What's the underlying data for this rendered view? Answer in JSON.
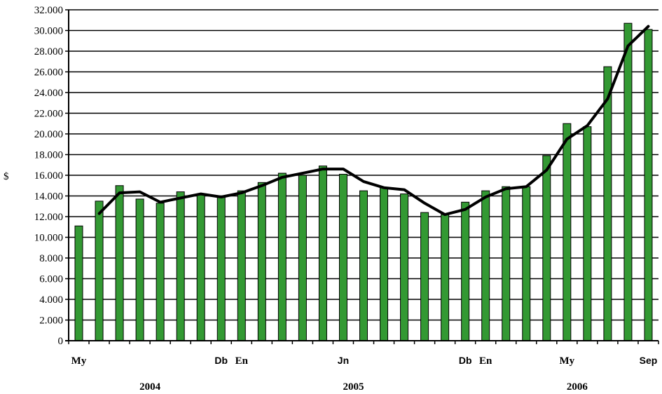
{
  "chart_data": {
    "type": "bar",
    "ylabel": "$",
    "ylim": [
      0,
      32000
    ],
    "y_ticks": [
      "0",
      "2.000",
      "4.000",
      "6.000",
      "8.000",
      "10.000",
      "12.000",
      "14.000",
      "16.000",
      "18.000",
      "20.000",
      "22.000",
      "24.000",
      "26.000",
      "28.000",
      "30.000",
      "32.000"
    ],
    "grid": "horizontal",
    "x_labels": [
      {
        "text": "My",
        "index": 0,
        "style": "serif"
      },
      {
        "text": "Db",
        "index": 7,
        "style": "sans"
      },
      {
        "text": "En",
        "index": 8,
        "style": "serif"
      },
      {
        "text": "Jn",
        "index": 13,
        "style": "sans"
      },
      {
        "text": "Db",
        "index": 19,
        "style": "sans"
      },
      {
        "text": "En",
        "index": 20,
        "style": "serif"
      },
      {
        "text": "My",
        "index": 24,
        "style": "serif"
      },
      {
        "text": "Sep",
        "index": 28,
        "style": "sans"
      }
    ],
    "years": [
      {
        "label": "2004",
        "index": 3.5
      },
      {
        "label": "2005",
        "index": 13.5
      },
      {
        "label": "2006",
        "index": 24.5
      }
    ],
    "series": [
      {
        "type": "bar",
        "color": "#339933",
        "values": [
          11100,
          13500,
          15000,
          13700,
          13300,
          14400,
          14200,
          13900,
          14500,
          15300,
          16200,
          16000,
          16900,
          16100,
          14500,
          14800,
          14200,
          12400,
          12200,
          13400,
          14500,
          14900,
          14900,
          17900,
          21000,
          20700,
          26500,
          30700,
          30100
        ]
      },
      {
        "type": "line",
        "color": "#000000",
        "start_index": 1,
        "values": [
          12300,
          14300,
          14400,
          13400,
          13800,
          14200,
          13900,
          14300,
          15000,
          15800,
          16200,
          16600,
          16600,
          15400,
          14800,
          14600,
          13300,
          12200,
          12700,
          13900,
          14700,
          14900,
          16500,
          19500,
          20800,
          23400,
          28500,
          30400
        ]
      }
    ]
  }
}
